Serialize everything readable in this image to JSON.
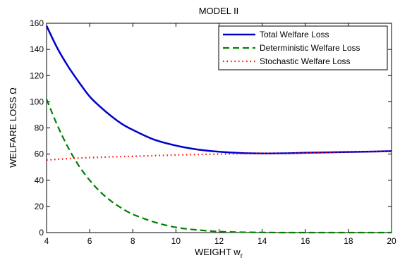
{
  "chart_data": {
    "type": "line",
    "title": "MODEL  II",
    "xlabel": "WEIGHT w",
    "xlabel_sub": "r",
    "ylabel": "WELFARE LOSS  Ω",
    "xlim": [
      4,
      20
    ],
    "ylim": [
      0,
      160
    ],
    "xticks": [
      4,
      6,
      8,
      10,
      12,
      14,
      16,
      18,
      20
    ],
    "yticks": [
      0,
      20,
      40,
      60,
      80,
      100,
      120,
      140,
      160
    ],
    "grid": false,
    "legend_position": "top-right",
    "x": [
      4,
      4.5,
      5,
      5.5,
      6,
      6.5,
      7,
      7.5,
      8,
      9,
      10,
      11,
      12,
      13,
      14,
      15,
      16,
      17,
      18,
      19,
      20
    ],
    "series": [
      {
        "name": "Total Welfare Loss",
        "color": "#0000cc",
        "style": "solid",
        "values": [
          158,
          141,
          127,
          115,
          104,
          96,
          89,
          83,
          78.5,
          71,
          66.5,
          63.5,
          61.8,
          60.8,
          60.5,
          60.6,
          61,
          61.3,
          61.6,
          61.9,
          62.3
        ]
      },
      {
        "name": "Deterministic Welfare Loss",
        "color": "#008000",
        "style": "dashed",
        "values": [
          102,
          82,
          65,
          51,
          40,
          31,
          24,
          18.5,
          14,
          8,
          4,
          2,
          0.8,
          0.3,
          0.1,
          0,
          0,
          0,
          0,
          0,
          0
        ]
      },
      {
        "name": "Stochastic Welfare Loss",
        "color": "#ff0000",
        "style": "dotted",
        "values": [
          55.5,
          56,
          56.5,
          57,
          57.3,
          57.6,
          57.9,
          58.1,
          58.3,
          58.8,
          59.3,
          59.7,
          60,
          60.3,
          60.5,
          60.6,
          60.9,
          61.2,
          61.5,
          61.8,
          62.1
        ]
      }
    ]
  }
}
